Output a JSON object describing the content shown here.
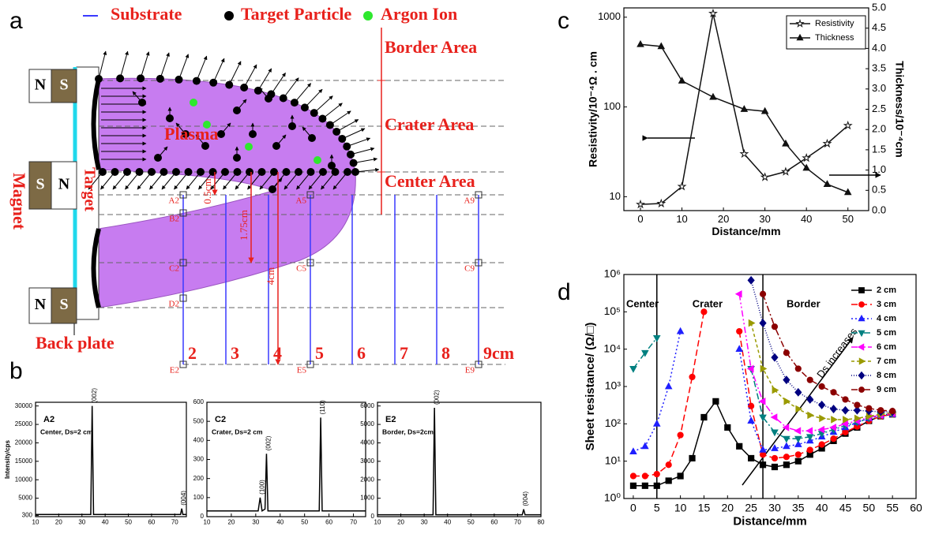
{
  "panel_labels": [
    "a",
    "b",
    "c",
    "d"
  ],
  "diagram": {
    "legend": [
      "Substrate",
      "Target Particle",
      "Argon Ion"
    ],
    "areas": [
      "Border Area",
      "Crater Area",
      "Center Area"
    ],
    "plasma": "Plasma",
    "magnet": "Magnet",
    "target": "Target",
    "back_plate": "Back plate",
    "poles": [
      [
        "N",
        "S"
      ],
      [
        "S",
        "N"
      ],
      [
        "N",
        "S"
      ]
    ],
    "points": [
      "A2",
      "A5",
      "A9",
      "B2",
      "C2",
      "C5",
      "C9",
      "D2",
      "E2",
      "E5",
      "E9"
    ],
    "distances": [
      "0.5cm",
      "1.75cm",
      "4cm"
    ],
    "positions": [
      "2",
      "3",
      "4",
      "5",
      "6",
      "7",
      "8",
      "9cm"
    ]
  },
  "chart_data": [
    {
      "type": "line",
      "x": [
        0,
        5,
        10,
        17.5,
        25,
        30,
        35,
        40,
        45,
        50
      ],
      "xlim": [
        -4,
        55
      ],
      "xticks": [
        0,
        10,
        20,
        30,
        40,
        50
      ],
      "ylim": [
        7,
        1270
      ],
      "ylog": true,
      "yticks": [
        10,
        100,
        1000
      ],
      "y2lim": [
        0,
        5
      ],
      "y2ticks": [
        {
          "value": 0,
          "label": "0.0"
        },
        {
          "value": 0.5,
          "label": "0.5"
        },
        {
          "value": 1,
          "label": "1.0"
        },
        {
          "value": 1.5,
          "label": "1.5"
        },
        {
          "value": 2,
          "label": "2.0"
        },
        {
          "value": 2.5,
          "label": "2.5"
        },
        {
          "value": 3,
          "label": "3.0"
        },
        {
          "value": 3.5,
          "label": "3.5"
        },
        {
          "value": 4,
          "label": "4.0"
        },
        {
          "value": 4.5,
          "label": "4.5"
        },
        {
          "value": 5,
          "label": "5.0"
        }
      ],
      "xlabel": "Distance/mm",
      "ylabel": "Resistivity/10⁻⁴Ω . cm",
      "y2label": "Thickness/10⁻⁴cm",
      "legend": "upper right",
      "series": [
        {
          "name": "Resistivity",
          "color": "#111111",
          "marker": "star",
          "filled": false,
          "values": [
            8.2,
            8.4,
            13,
            1100,
            30,
            16.5,
            19,
            27,
            39,
            62
          ]
        },
        {
          "name": "Thickness",
          "color": "#111111",
          "marker": "triangle",
          "filled": true,
          "axis": "y2",
          "values": [
            4.1,
            4.05,
            3.2,
            2.8,
            2.5,
            2.45,
            1.65,
            1.05,
            0.65,
            0.45
          ]
        }
      ]
    },
    {
      "type": "line",
      "x": [
        0,
        2.5,
        5,
        7.5,
        10,
        12.5,
        15,
        17.5,
        20,
        22.5,
        25,
        27.5,
        30,
        32.5,
        35,
        37.5,
        40,
        42.5,
        45,
        47.5,
        50,
        52.5,
        55
      ],
      "xlim": [
        -2,
        60
      ],
      "xticks": [
        0,
        5,
        10,
        15,
        20,
        25,
        30,
        35,
        40,
        45,
        50,
        55,
        60
      ],
      "ylim": [
        1,
        1000000
      ],
      "ylog": true,
      "yticks": [
        {
          "value": 1,
          "label": "10⁰"
        },
        {
          "value": 10,
          "label": "10¹"
        },
        {
          "value": 100,
          "label": "10²"
        },
        {
          "value": 1000,
          "label": "10³"
        },
        {
          "value": 10000,
          "label": "10⁴"
        },
        {
          "value": 100000,
          "label": "10⁵"
        },
        {
          "value": 1000000,
          "label": "10⁶"
        }
      ],
      "xlabel": "Distance/mm",
      "ylabel": "Sheet resistance/ (Ω/□)",
      "region_lines": [
        5,
        27.5
      ],
      "region_labels": [
        "Center",
        "Crater",
        "Border"
      ],
      "annotation": "Ds increases",
      "legend": "upper right",
      "series": [
        {
          "name": "2 cm",
          "color": "#000000",
          "marker": "square",
          "filled": true,
          "values": [
            2.2,
            2.2,
            2.2,
            3,
            4,
            12,
            150,
            400,
            80,
            25,
            12,
            8,
            7,
            8,
            10,
            15,
            22,
            35,
            55,
            80,
            120,
            160,
            180
          ]
        },
        {
          "name": "3 cm",
          "color": "#ff0000",
          "marker": "circle",
          "filled": true,
          "dash": "8,4",
          "values": [
            4,
            4,
            4.5,
            8,
            50,
            1800,
            100000,
            null,
            null,
            30000,
            300,
            15,
            12,
            13,
            15,
            20,
            28,
            40,
            60,
            85,
            120,
            160,
            180
          ]
        },
        {
          "name": "4 cm",
          "color": "#1f1fff",
          "marker": "triangle",
          "filled": true,
          "dash": "2,3",
          "values": [
            18,
            25,
            100,
            1000,
            30000,
            null,
            null,
            null,
            null,
            10000,
            120,
            20,
            22,
            25,
            28,
            35,
            45,
            60,
            80,
            110,
            140,
            170,
            180
          ]
        },
        {
          "name": "5 cm",
          "color": "#008080",
          "marker": "tri-down",
          "filled": true,
          "dash": "8,3,2,3",
          "values": [
            3000,
            8000,
            20000,
            null,
            null,
            null,
            null,
            null,
            null,
            null,
            3000,
            150,
            60,
            40,
            40,
            45,
            55,
            70,
            90,
            110,
            140,
            170,
            190
          ]
        },
        {
          "name": "6 cm",
          "color": "#ff00ff",
          "marker": "tri-left",
          "filled": true,
          "dash": "8,3,2,3,2,3",
          "values": [
            null,
            null,
            null,
            null,
            null,
            null,
            null,
            null,
            null,
            300000,
            3000,
            400,
            150,
            80,
            65,
            65,
            70,
            80,
            100,
            120,
            150,
            170,
            190
          ]
        },
        {
          "name": "7 cm",
          "color": "#9a9a00",
          "marker": "tri-right",
          "filled": true,
          "dash": "4,3",
          "values": [
            null,
            null,
            null,
            null,
            null,
            null,
            null,
            null,
            null,
            null,
            50000,
            3000,
            800,
            400,
            250,
            170,
            140,
            130,
            130,
            140,
            160,
            180,
            200
          ]
        },
        {
          "name": "8 cm",
          "color": "#000080",
          "marker": "diamond",
          "filled": true,
          "dash": "1,2",
          "values": [
            null,
            null,
            null,
            null,
            null,
            null,
            null,
            null,
            null,
            null,
            700000,
            50000,
            6000,
            1500,
            700,
            450,
            320,
            250,
            230,
            230,
            220,
            210,
            210
          ]
        },
        {
          "name": "9 cm",
          "color": "#8b0000",
          "marker": "circle",
          "filled": true,
          "dash": "8,3,2,3",
          "values": [
            null,
            null,
            null,
            null,
            null,
            null,
            null,
            null,
            null,
            null,
            null,
            300000,
            40000,
            8000,
            3000,
            1500,
            1000,
            700,
            450,
            320,
            260,
            230,
            220
          ]
        }
      ]
    },
    {
      "type": "line",
      "x": [
        10,
        33.8,
        34.4,
        35,
        72.5,
        73,
        73.5,
        75
      ],
      "xlim": [
        10,
        75
      ],
      "xticks": [
        10,
        20,
        30,
        40,
        50,
        60,
        70
      ],
      "ylim": [
        0,
        31000
      ],
      "yticks": [
        300,
        5000,
        10000,
        15000,
        20000,
        25000,
        30000
      ],
      "ylabel": "Intensity/cps",
      "label": "A2",
      "note": "Center, Ds=2 cm",
      "annotations": [
        {
          "text": "(002)",
          "x": 34.4,
          "y": 30000
        },
        {
          "text": "(004)",
          "x": 73,
          "y": 2200
        }
      ],
      "series": [
        {
          "color": "#000000",
          "values": [
            600,
            600,
            30000,
            600,
            600,
            2200,
            600,
            600
          ]
        }
      ]
    },
    {
      "type": "line",
      "x": [
        10,
        31,
        31.8,
        32.6,
        33.8,
        34.4,
        35,
        56,
        56.6,
        57.2,
        75
      ],
      "xlim": [
        10,
        75
      ],
      "xticks": [
        10,
        20,
        30,
        40,
        50,
        60,
        70
      ],
      "ylim": [
        0,
        600
      ],
      "yticks": [
        0,
        100,
        200,
        300,
        400,
        500,
        600
      ],
      "label": "C2",
      "note": "Crater, Ds=2 cm",
      "annotations": [
        {
          "text": "(100)",
          "x": 31.8,
          "y": 100
        },
        {
          "text": "(002)",
          "x": 34.4,
          "y": 330
        },
        {
          "text": "(110)",
          "x": 56.6,
          "y": 520
        }
      ],
      "series": [
        {
          "color": "#000000",
          "values": [
            30,
            30,
            100,
            30,
            40,
            330,
            30,
            30,
            520,
            30,
            30
          ]
        }
      ]
    },
    {
      "type": "line",
      "x": [
        10,
        33.8,
        34.4,
        35,
        72,
        72.6,
        73.2,
        80
      ],
      "xlim": [
        10,
        80
      ],
      "xticks": [
        10,
        20,
        30,
        40,
        50,
        60,
        70,
        80
      ],
      "ylim": [
        0,
        6200
      ],
      "yticks": [
        0,
        1000,
        2000,
        3000,
        4000,
        5000,
        6000
      ],
      "label": "E2",
      "note": "Border, Ds=2cm",
      "annotations": [
        {
          "text": "(002)",
          "x": 34.4,
          "y": 5900
        },
        {
          "text": "(004)",
          "x": 72.6,
          "y": 400
        }
      ],
      "series": [
        {
          "color": "#000000",
          "values": [
            100,
            100,
            5900,
            100,
            100,
            400,
            100,
            100
          ]
        }
      ]
    }
  ]
}
